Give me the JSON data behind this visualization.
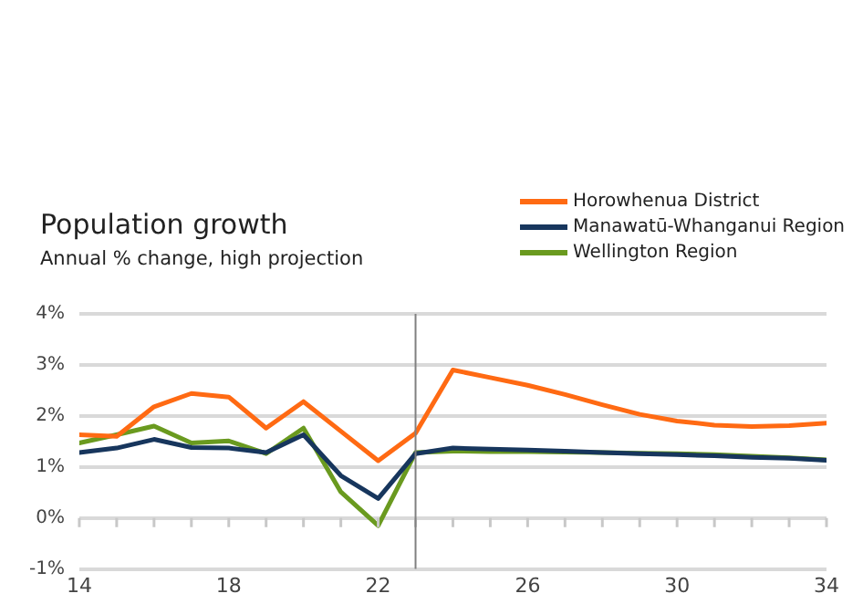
{
  "chart_data": {
    "type": "line",
    "title": "Population growth",
    "subtitle": "Annual % change, high projection",
    "x": [
      14,
      15,
      16,
      17,
      18,
      19,
      20,
      21,
      22,
      23,
      24,
      25,
      26,
      27,
      28,
      29,
      30,
      31,
      32,
      33,
      34
    ],
    "series": [
      {
        "name": "Horowhenua District",
        "color": "#ff6a13",
        "values": [
          1.63,
          1.6,
          2.18,
          2.44,
          2.37,
          1.76,
          2.28,
          1.7,
          1.12,
          1.66,
          2.9,
          2.75,
          2.6,
          2.42,
          2.22,
          2.03,
          1.9,
          1.82,
          1.79,
          1.81,
          1.86
        ]
      },
      {
        "name": "Manawatū-Whanganui Region",
        "color": "#17365d",
        "values": [
          1.28,
          1.37,
          1.54,
          1.38,
          1.37,
          1.28,
          1.63,
          0.83,
          0.38,
          1.26,
          1.37,
          1.35,
          1.33,
          1.31,
          1.28,
          1.26,
          1.24,
          1.22,
          1.19,
          1.17,
          1.13
        ]
      },
      {
        "name": "Wellington Region",
        "color": "#6a9a1f",
        "values": [
          1.47,
          1.63,
          1.8,
          1.47,
          1.51,
          1.26,
          1.76,
          0.51,
          -0.15,
          1.28,
          1.31,
          1.3,
          1.3,
          1.29,
          1.28,
          1.27,
          1.26,
          1.24,
          1.21,
          1.18,
          1.14
        ]
      }
    ],
    "xlim": [
      14,
      34
    ],
    "xticks": [
      14,
      {
        "value": 15,
        "label": null
      },
      {
        "value": 16,
        "label": null
      },
      {
        "value": 17,
        "label": null
      },
      18,
      {
        "value": 19,
        "label": null
      },
      {
        "value": 20,
        "label": null
      },
      {
        "value": 21,
        "label": null
      },
      22,
      {
        "value": 23,
        "label": null
      },
      {
        "value": 24,
        "label": null
      },
      {
        "value": 25,
        "label": null
      },
      26,
      {
        "value": 27,
        "label": null
      },
      {
        "value": 28,
        "label": null
      },
      {
        "value": 29,
        "label": null
      },
      30,
      {
        "value": 31,
        "label": null
      },
      {
        "value": 32,
        "label": null
      },
      {
        "value": 33,
        "label": null
      },
      34
    ],
    "ylim": [
      -1,
      4
    ],
    "yticks": [
      {
        "value": -1,
        "label": "-1%"
      },
      {
        "value": 0,
        "label": "0%"
      },
      {
        "value": 1,
        "label": "1%"
      },
      {
        "value": 2,
        "label": "2%"
      },
      {
        "value": 3,
        "label": "3%"
      },
      {
        "value": 4,
        "label": "4%"
      }
    ],
    "ref_lines": [
      {
        "axis": "x",
        "value": 23,
        "color": "#808080"
      }
    ],
    "grid": "y",
    "legend": "top right",
    "marker": "none",
    "line_style": "solid"
  }
}
